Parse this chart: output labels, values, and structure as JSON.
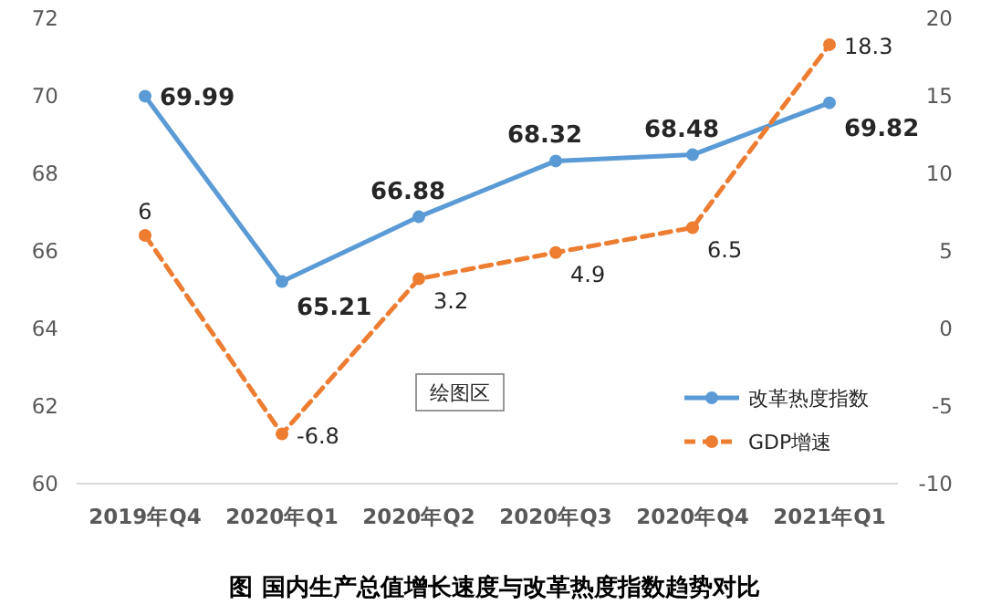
{
  "chart_data": {
    "type": "line",
    "title": "图  国内生产总值增长速度与改革热度指数趋势对比",
    "categories": [
      "2019年Q4",
      "2020年Q1",
      "2020年Q2",
      "2020年Q3",
      "2020年Q4",
      "2021年Q1"
    ],
    "series": [
      {
        "name": "改革热度指数",
        "color": "#5b9bd5",
        "values": [
          69.99,
          65.21,
          66.88,
          68.32,
          68.48,
          69.82
        ],
        "line_style": "solid"
      },
      {
        "name": "GDP增速",
        "color": "#ed7d31",
        "values": [
          6,
          -6.8,
          3.2,
          4.9,
          6.5,
          18.3
        ],
        "axis": "y2",
        "line_style": "dashed"
      }
    ],
    "ylim": [
      60,
      72
    ],
    "yticks": [
      60,
      62,
      64,
      66,
      68,
      70,
      72
    ],
    "y2lim": [
      -10,
      20
    ],
    "y2ticks": [
      -10,
      -5,
      0,
      5,
      10,
      15,
      20
    ],
    "data_labels": true,
    "marker": "circle",
    "legend": "bottom right",
    "grid": false,
    "annotations": [
      "绘图区"
    ]
  }
}
